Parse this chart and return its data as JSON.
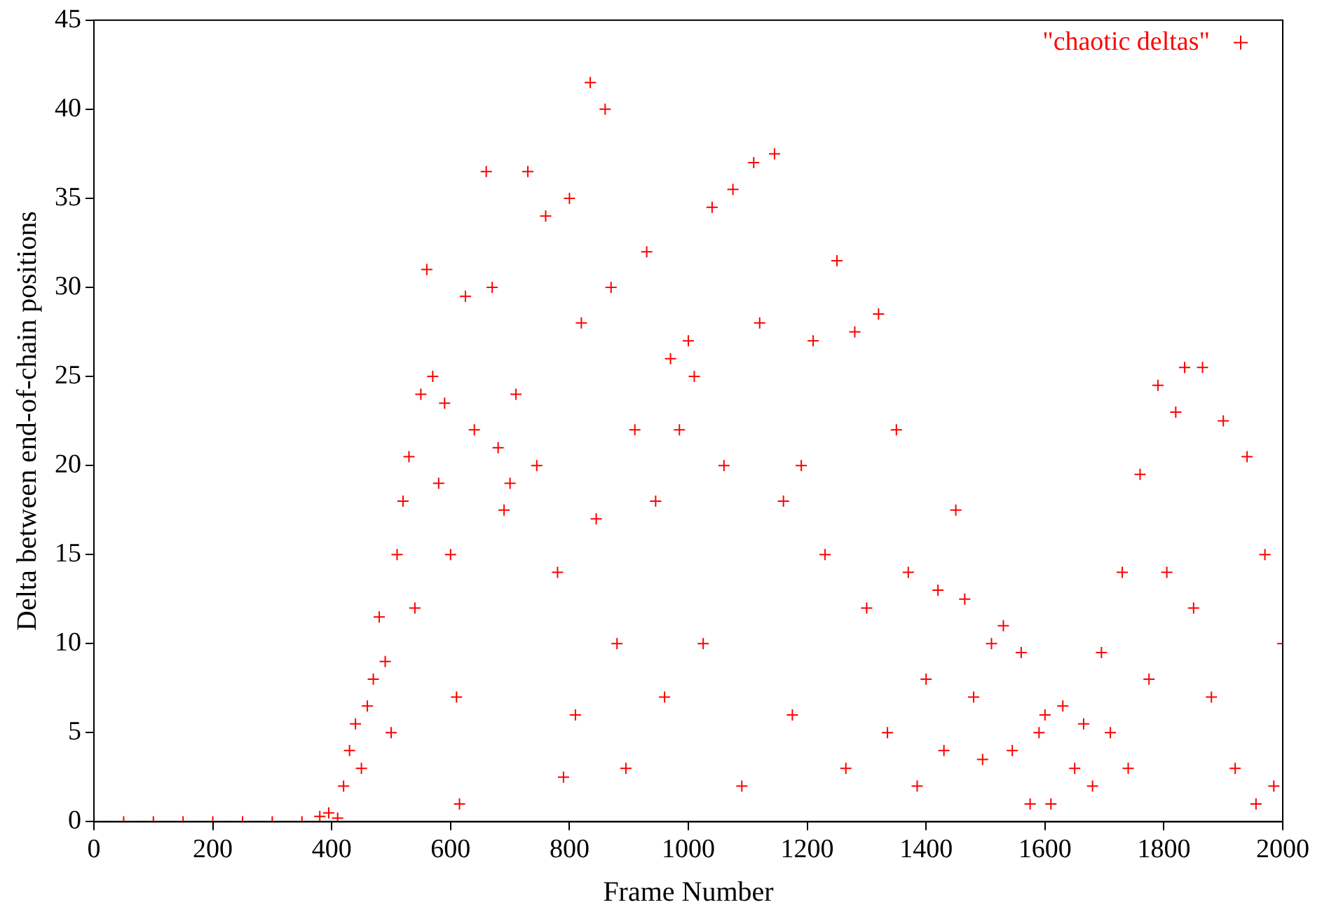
{
  "chart_data": {
    "type": "scatter",
    "xlabel": "Frame Number",
    "ylabel": "Delta between end-of-chain positions",
    "xlim": [
      0,
      2000
    ],
    "ylim": [
      0,
      45
    ],
    "xticks": [
      0,
      200,
      400,
      600,
      800,
      1000,
      1200,
      1400,
      1600,
      1800,
      2000
    ],
    "yticks": [
      0,
      5,
      10,
      15,
      20,
      25,
      30,
      35,
      40,
      45
    ],
    "grid": false,
    "legend": "top right",
    "marker": "cross",
    "series": [
      {
        "name": "\"chaotic deltas\"",
        "color": "#ff0000",
        "x": [
          0,
          50,
          100,
          150,
          200,
          250,
          300,
          350,
          380,
          395,
          410,
          420,
          430,
          440,
          450,
          460,
          470,
          480,
          490,
          500,
          510,
          520,
          530,
          540,
          550,
          560,
          570,
          580,
          590,
          600,
          610,
          615,
          625,
          640,
          660,
          670,
          680,
          690,
          700,
          710,
          730,
          745,
          760,
          780,
          790,
          800,
          810,
          820,
          835,
          845,
          860,
          870,
          880,
          895,
          910,
          930,
          945,
          960,
          970,
          985,
          1000,
          1010,
          1025,
          1040,
          1060,
          1075,
          1090,
          1110,
          1120,
          1145,
          1160,
          1175,
          1190,
          1210,
          1230,
          1250,
          1265,
          1280,
          1300,
          1320,
          1335,
          1350,
          1370,
          1385,
          1400,
          1420,
          1430,
          1450,
          1465,
          1480,
          1495,
          1510,
          1530,
          1545,
          1560,
          1575,
          1590,
          1600,
          1610,
          1630,
          1650,
          1665,
          1680,
          1695,
          1710,
          1730,
          1740,
          1760,
          1775,
          1790,
          1805,
          1820,
          1835,
          1850,
          1865,
          1880,
          1900,
          1920,
          1940,
          1955,
          1970,
          1985,
          2000
        ],
        "values": [
          0,
          0,
          0,
          0,
          0,
          0,
          0,
          0,
          0.3,
          0.5,
          0.2,
          2,
          4,
          5.5,
          3,
          6.5,
          8,
          11.5,
          9,
          5,
          15,
          18,
          20.5,
          12,
          24,
          31,
          25,
          19,
          23.5,
          15,
          7,
          1,
          29.5,
          22,
          36.5,
          30,
          21,
          17.5,
          19,
          24,
          36.5,
          20,
          34,
          14,
          2.5,
          35,
          6,
          28,
          41.5,
          17,
          40,
          30,
          10,
          3,
          22,
          32,
          18,
          7,
          26,
          22,
          27,
          25,
          10,
          34.5,
          20,
          35.5,
          2,
          37,
          28,
          37.5,
          18,
          6,
          20,
          27,
          15,
          31.5,
          3,
          27.5,
          12,
          28.5,
          5,
          22,
          14,
          2,
          8,
          13,
          4,
          17.5,
          12.5,
          7,
          3.5,
          10,
          11,
          4,
          9.5,
          1,
          5,
          6,
          1,
          6.5,
          3,
          5.5,
          2,
          9.5,
          5,
          14,
          3,
          19.5,
          8,
          24.5,
          14,
          23,
          25.5,
          12,
          25.5,
          7,
          22.5,
          3,
          20.5,
          1,
          15,
          2,
          10
        ]
      }
    ]
  }
}
